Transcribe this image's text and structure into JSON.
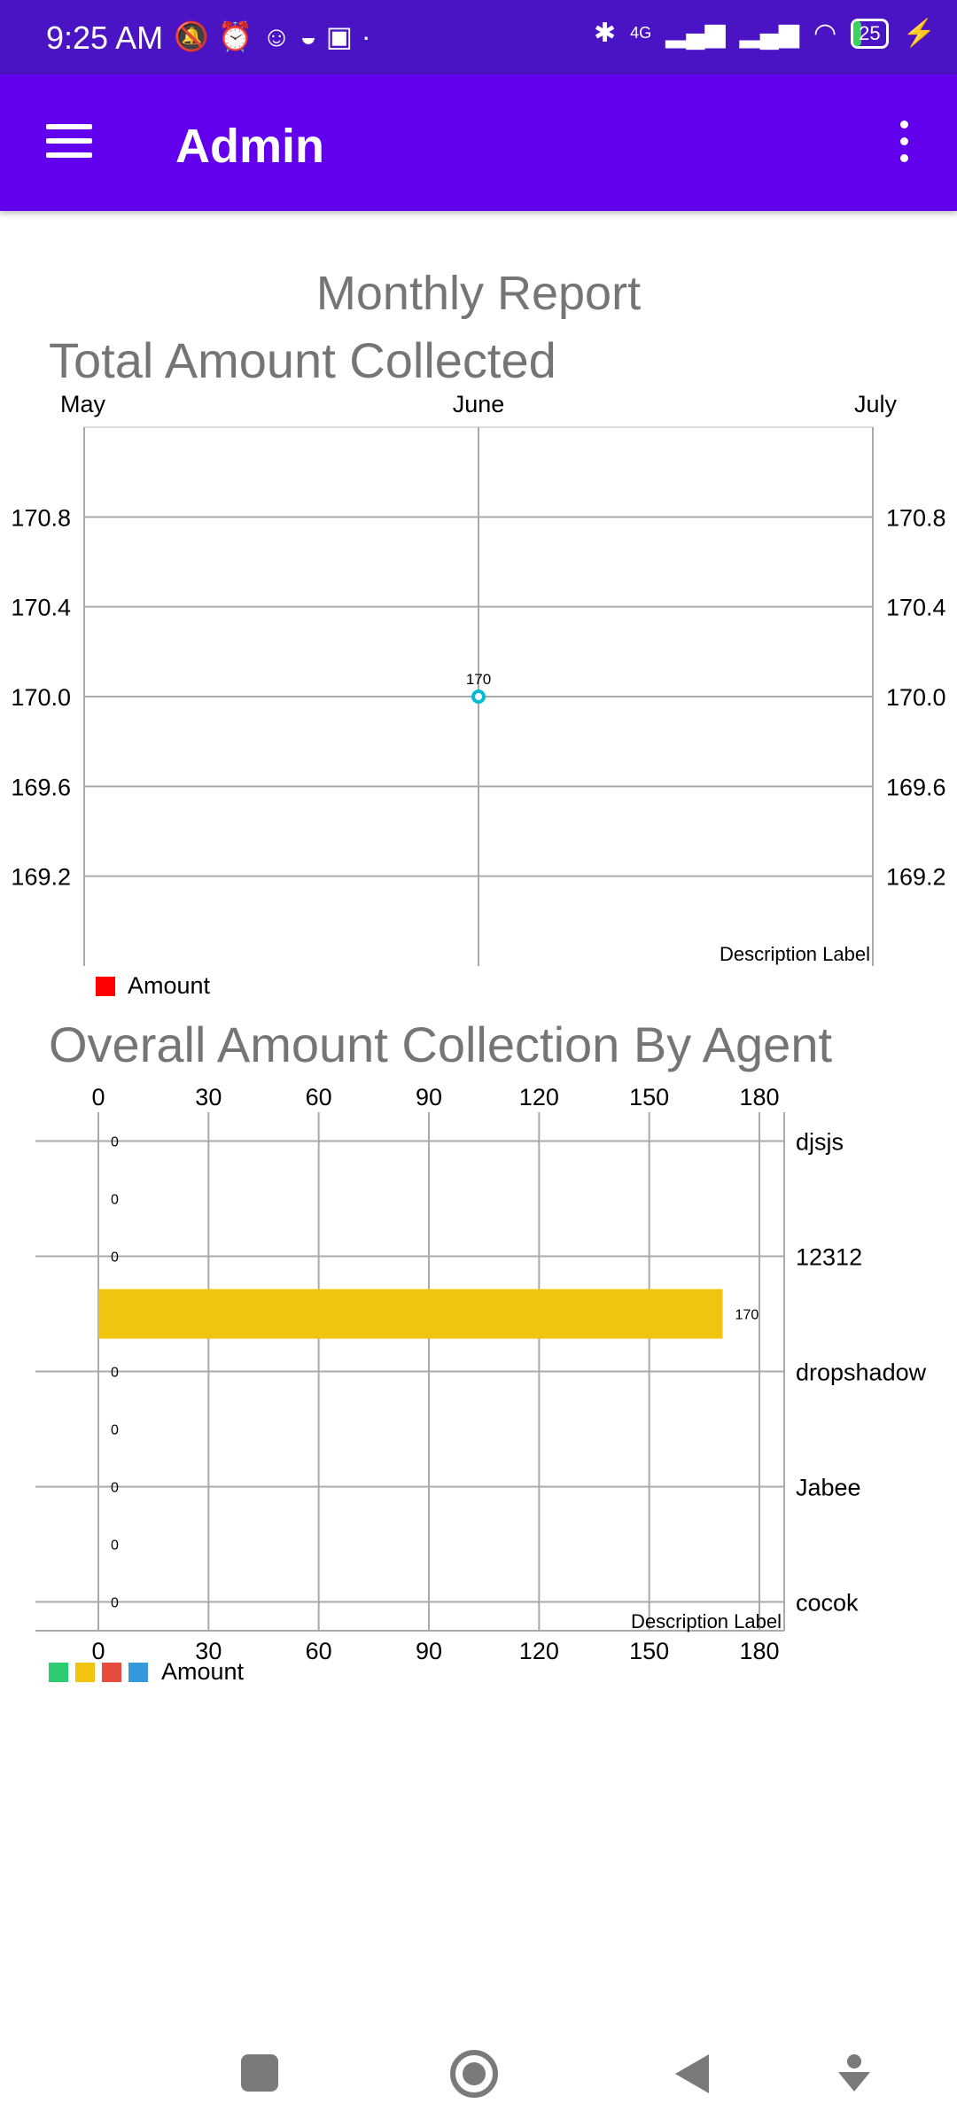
{
  "status_bar": {
    "time": "9:25 AM",
    "network": "4G",
    "battery": "25",
    "battery_level": 0.25
  },
  "app_bar": {
    "title": "Admin"
  },
  "page": {
    "title": "Monthly Report"
  },
  "charts": {
    "line": {
      "title": "Total Amount Collected",
      "description": "Description Label",
      "legend": "Amount",
      "legend_color": "#ff0000"
    },
    "bar": {
      "title": "Overall Amount Collection By Agent",
      "description": "Description Label",
      "legend": "Amount",
      "legend_colors": [
        "#2ecc71",
        "#f1c40f",
        "#e74c3c",
        "#3498db"
      ]
    }
  },
  "chart_data": [
    {
      "type": "line",
      "title": "Total Amount Collected",
      "x": [
        "May",
        "June",
        "July"
      ],
      "series": [
        {
          "name": "Amount",
          "values": [
            null,
            170,
            null
          ],
          "data_labels": [
            "",
            "170",
            ""
          ]
        }
      ],
      "y_ticks": [
        "170.8",
        "170.4",
        "170.0",
        "169.6",
        "169.2"
      ],
      "ylim": [
        168.8,
        171.2
      ],
      "color": "#00bcd4",
      "grid": true,
      "legend": "bottom-left"
    },
    {
      "type": "bar",
      "orientation": "horizontal",
      "title": "Overall Amount Collection By Agent",
      "category_labels": [
        "djsjs",
        "12312",
        "dropshadow",
        "Jabee",
        "cocok"
      ],
      "values": [
        0,
        0,
        0,
        170,
        0,
        0,
        0,
        0,
        0
      ],
      "data_labels": [
        "0",
        "0",
        "0",
        "170",
        "0",
        "0",
        "0",
        "0",
        "0"
      ],
      "x_ticks": [
        "0",
        "30",
        "60",
        "90",
        "120",
        "150",
        "180"
      ],
      "xlim": [
        0,
        180
      ],
      "bar_color": "#f1c40f",
      "grid": true,
      "legend": "bottom-left"
    }
  ]
}
